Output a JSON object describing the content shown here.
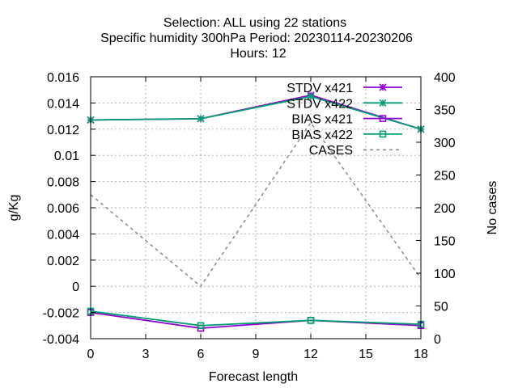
{
  "title": {
    "line1": "Selection: ALL using    22 stations",
    "line2": "Specific humidity 300hPa   Period: 20230114-20230206",
    "line3": "Hours:  12"
  },
  "chart_data": {
    "type": "line",
    "xlabel": "Forecast length",
    "ylabel": "g/Kg",
    "y2label": "No cases",
    "x": [
      0,
      6,
      12,
      18
    ],
    "xlim": [
      0,
      18
    ],
    "xticks": [
      "0",
      "3",
      "6",
      "9",
      "12",
      "15",
      "18"
    ],
    "ylim": [
      -0.004,
      0.016
    ],
    "yticks": [
      "-0.004",
      "-0.002",
      "0",
      "0.002",
      "0.004",
      "0.006",
      "0.008",
      "0.01",
      "0.012",
      "0.014",
      "0.016"
    ],
    "y2lim": [
      0,
      400
    ],
    "y2ticks": [
      "0",
      "50",
      "100",
      "150",
      "200",
      "250",
      "300",
      "350",
      "400"
    ],
    "grid": true,
    "legend_position": "top-right",
    "series": [
      {
        "name": "STDV x421",
        "axis": "y",
        "marker": "star",
        "color": "#9400d3",
        "values": [
          0.0127,
          0.0128,
          0.0146,
          0.012
        ]
      },
      {
        "name": "STDV x422",
        "axis": "y",
        "marker": "star",
        "color": "#009e73",
        "values": [
          0.0127,
          0.0128,
          0.0145,
          0.012
        ]
      },
      {
        "name": "BIAS x421",
        "axis": "y",
        "marker": "square",
        "color": "#9400d3",
        "values": [
          -0.002,
          -0.0032,
          -0.0026,
          -0.003
        ]
      },
      {
        "name": "BIAS x422",
        "axis": "y",
        "marker": "square",
        "color": "#009e73",
        "values": [
          -0.0019,
          -0.003,
          -0.0026,
          -0.0029
        ]
      },
      {
        "name": "CASES",
        "axis": "y2",
        "marker": "none",
        "color": "#888888",
        "dash": true,
        "values": [
          220,
          80,
          330,
          92
        ]
      }
    ]
  }
}
